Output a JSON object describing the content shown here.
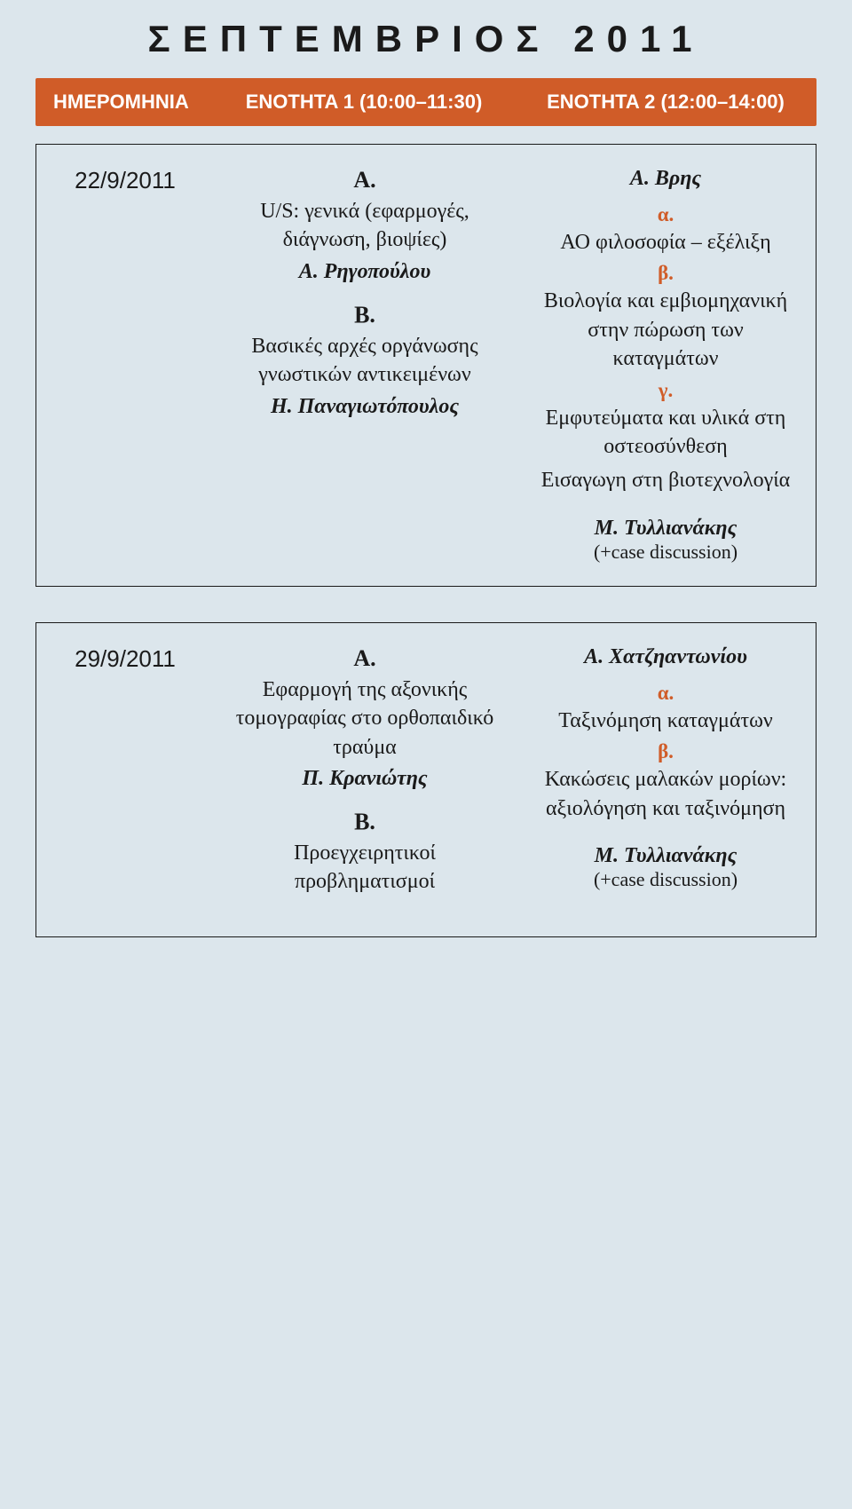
{
  "page_title": "ΣΕΠΤΕΜΒΡΙΟΣ 2011",
  "colors": {
    "header_bg": "#d05c28",
    "header_text": "#ffffff",
    "page_bg": "#dce6ec",
    "text": "#1a1a1a",
    "accent": "#d05c28",
    "border": "#1a1a1a"
  },
  "header": {
    "col1": "HMEPOMHNIA",
    "col2": "ENOTHTA 1 (10:00–11:30)",
    "col3": "ENOTHTA 2 (12:00–14:00)"
  },
  "rows": [
    {
      "date": "22/9/2011",
      "col2": {
        "blocks": [
          {
            "letter": "Α.",
            "text": "U/S: γενικά (εφαρμογές, διάγνωση, βιοψίες)",
            "presenter": "Α. Ρηγοπούλου"
          },
          {
            "letter": "Β.",
            "text": "Βασικές αρχές οργάνωσης γνωστικών αντικειμένων",
            "presenter": "Η. Παναγιωτόπουλος"
          }
        ]
      },
      "col3": {
        "presenter_top": "Α. Βρης",
        "subs": [
          {
            "letter": "α.",
            "text": "ΑΟ φιλοσοφία – εξέλιξη"
          },
          {
            "letter": "β.",
            "text": "Βιολογία και εμβιομηχανική στην πώρωση των καταγμάτων"
          },
          {
            "letter": "γ.",
            "text": "Εμφυτεύματα και υλικά στη οστεοσύνθεση"
          }
        ],
        "extra_text": "Εισαγωγη στη βιοτεχνολογία",
        "final_presenter": "Μ. Τυλλιανάκης",
        "case_discussion": "(+case discussion)"
      }
    },
    {
      "date": "29/9/2011",
      "col2": {
        "blocks": [
          {
            "letter": "Α.",
            "text": "Εφαρμογή της αξονικής τομογραφίας στο ορθοπαιδικό τραύμα",
            "presenter": "Π. Κρανιώτης"
          },
          {
            "letter": "Β.",
            "text": "Προεγχειρητικοί προβληματισμοί",
            "presenter": ""
          }
        ]
      },
      "col3": {
        "presenter_top": "Α. Χατζηαντωνίου",
        "subs": [
          {
            "letter": "α.",
            "text": "Ταξινόμηση καταγμάτων"
          },
          {
            "letter": "β.",
            "text": "Κακώσεις μαλακών μορίων: αξιολόγηση και ταξινόμηση"
          }
        ],
        "extra_text": "",
        "final_presenter": "Μ. Τυλλιανάκης",
        "case_discussion": "(+case discussion)"
      }
    }
  ]
}
